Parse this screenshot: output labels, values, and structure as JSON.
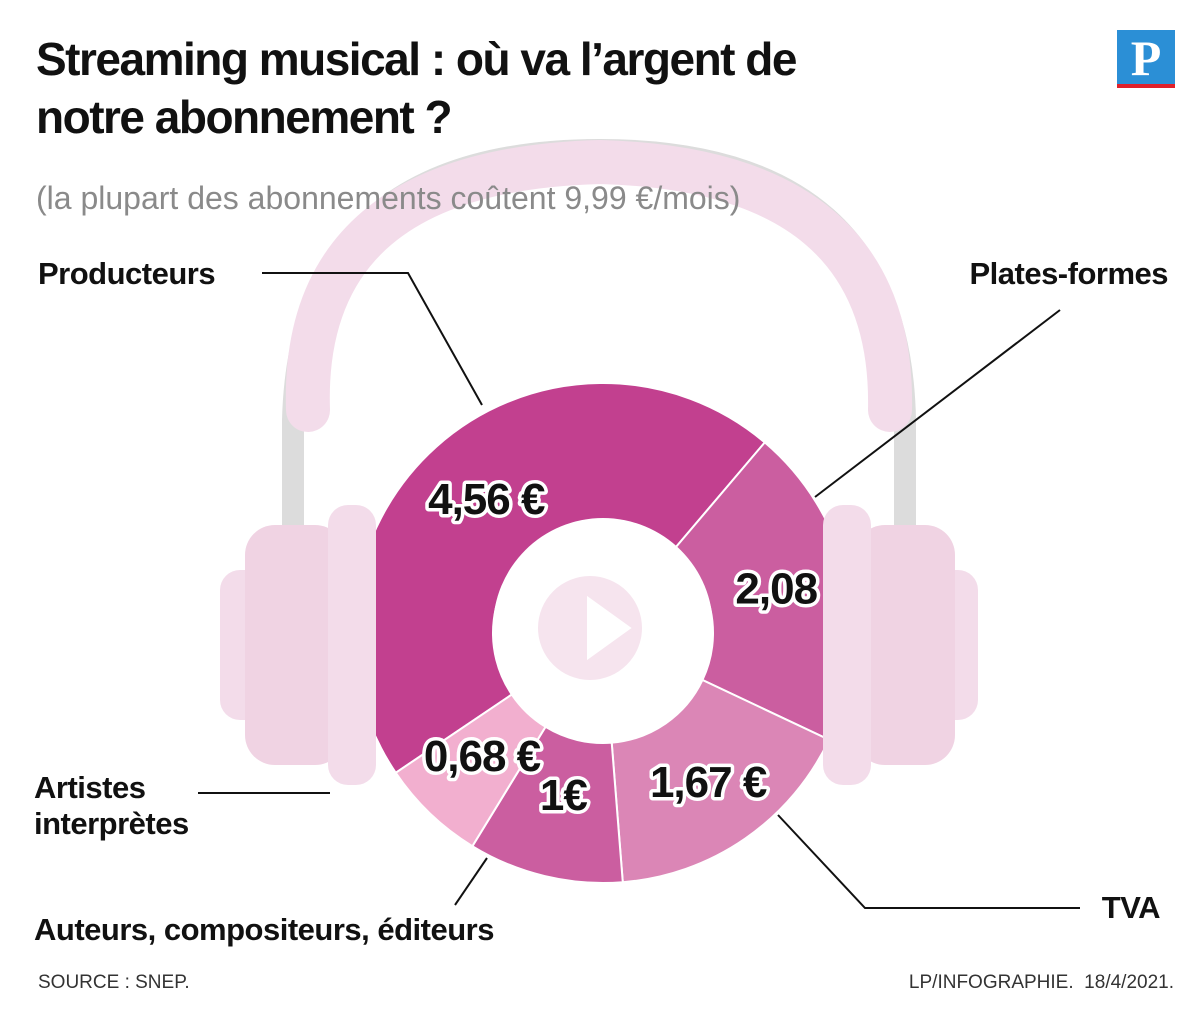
{
  "chart_data": {
    "type": "donut",
    "title": "Streaming musical : où va l’argent de notre abonnement ?",
    "subtitle": "(la plupart des abonnements coûtent 9,99 €/mois)",
    "categories": [
      "Producteurs",
      "Plates-formes",
      "TVA",
      "Auteurs, compositeurs, éditeurs",
      "Artistes interprètes"
    ],
    "values": [
      4.56,
      2.08,
      1.67,
      1,
      0.68
    ],
    "value_labels": [
      "4,56 €",
      "2,08 €",
      "1,67 €",
      "1€",
      "0,68 €"
    ],
    "colors": [
      "#c2408f",
      "#cb5ea0",
      "#db86b6",
      "#cb5ea0",
      "#f2afcf"
    ],
    "source": "SOURCE : SNEP.",
    "credit": "LP/INFOGRAPHIE.  18/4/2021.",
    "logo": "P"
  }
}
